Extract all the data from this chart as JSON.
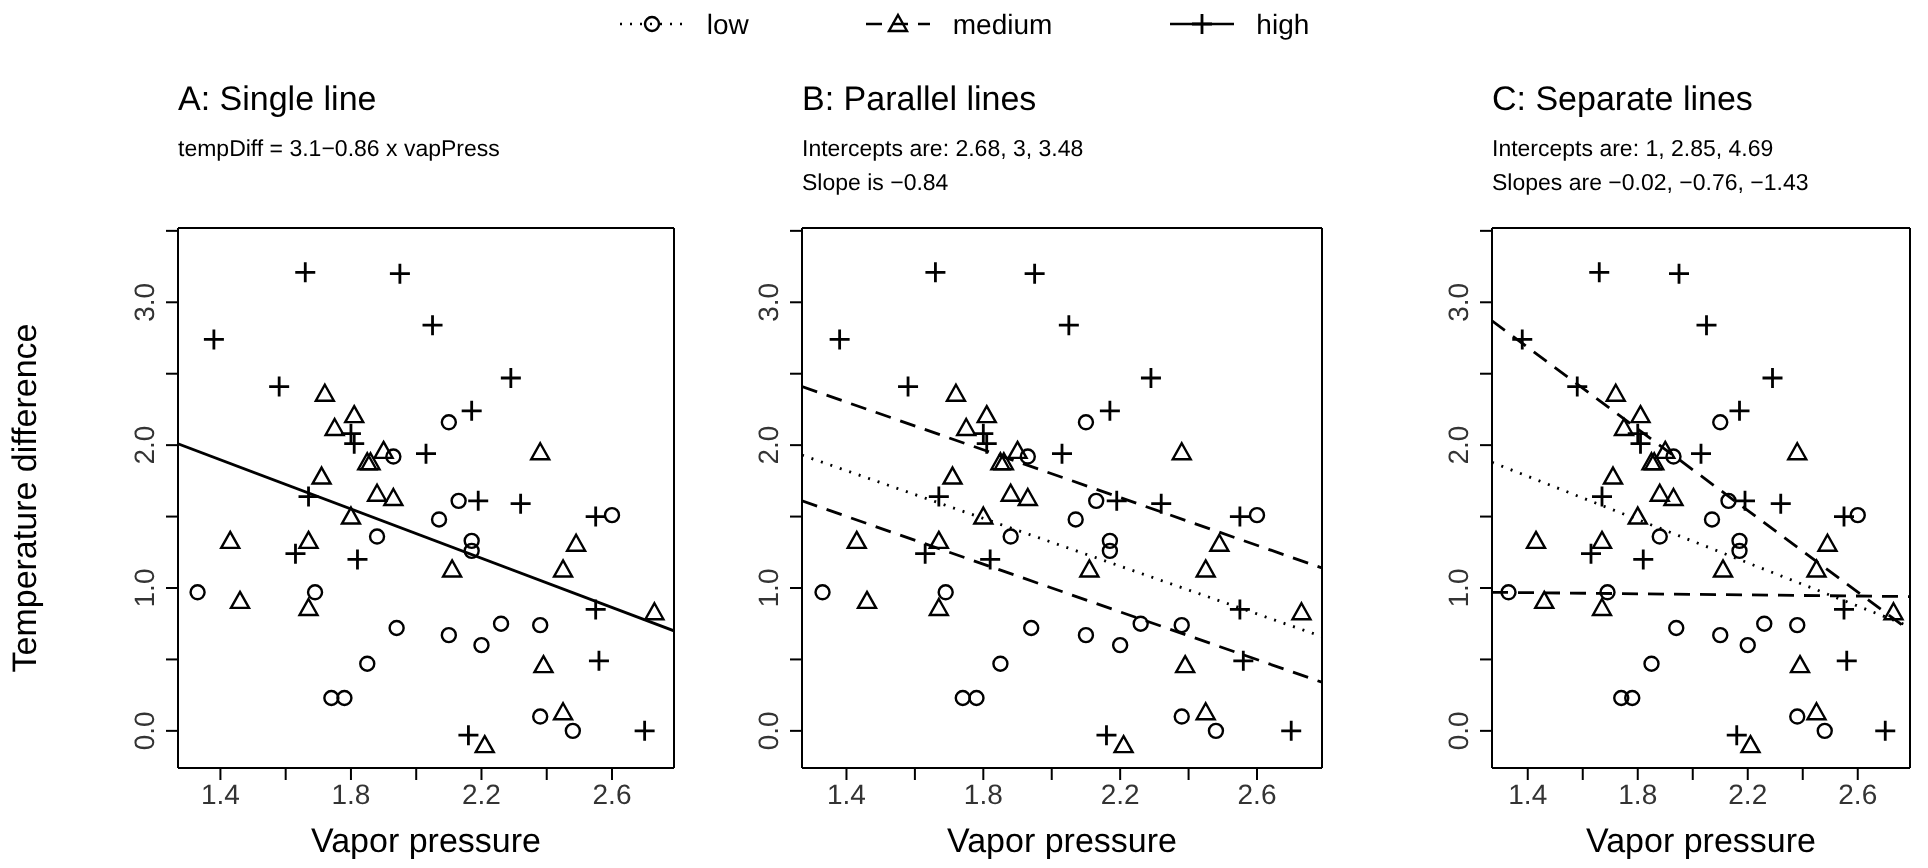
{
  "chart_data": [
    {
      "type": "scatter",
      "title": "A: Single line",
      "subtitle": "tempDiff = 3.1−0.86 x vapPress",
      "xlabel": "Vapor pressure",
      "ylabel": "Temperature difference",
      "legend": "top",
      "xlim": [
        1.27,
        2.79
      ],
      "ylim": [
        -0.26,
        3.52
      ],
      "xticks": [
        1.4,
        {
          "value": 1.6,
          "label": null
        },
        1.8,
        {
          "value": 2.0,
          "label": null
        },
        2.2,
        {
          "value": 2.4,
          "label": null
        },
        2.6
      ],
      "yticks": [
        {
          "value": 0,
          "label": "0.0"
        },
        {
          "value": 0.5,
          "label": null
        },
        {
          "value": 1,
          "label": "1.0"
        },
        {
          "value": 1.5,
          "label": null
        },
        {
          "value": 2,
          "label": "2.0"
        },
        {
          "value": 2.5,
          "label": null
        },
        {
          "value": 3,
          "label": "3.0"
        },
        {
          "value": 3.5,
          "label": null
        }
      ],
      "series": [
        {
          "name": "low",
          "type": "scatter",
          "marker": "circle",
          "line_style": "dotted",
          "color": "#000000",
          "x": [
            1.33,
            1.69,
            1.74,
            1.78,
            1.85,
            1.88,
            1.93,
            1.94,
            2.07,
            2.1,
            2.1,
            2.13,
            2.17,
            2.17,
            2.2,
            2.26,
            2.38,
            2.38,
            2.48,
            2.6
          ],
          "values": [
            0.97,
            0.97,
            0.23,
            0.23,
            0.47,
            1.36,
            1.92,
            0.72,
            1.48,
            2.16,
            0.67,
            1.61,
            1.33,
            1.26,
            0.6,
            0.75,
            0.74,
            0.1,
            0.0,
            1.51
          ]
        },
        {
          "name": "medium",
          "type": "scatter",
          "marker": "triangle",
          "line_style": "dashed",
          "color": "#000000",
          "x": [
            1.43,
            1.46,
            1.67,
            1.67,
            1.71,
            1.72,
            1.75,
            1.81,
            1.8,
            1.85,
            1.86,
            1.9,
            1.88,
            1.93,
            2.11,
            2.21,
            2.38,
            2.39,
            2.45,
            2.45,
            2.49,
            2.73
          ],
          "values": [
            1.33,
            0.91,
            1.33,
            0.86,
            1.78,
            2.36,
            2.12,
            2.21,
            1.5,
            1.88,
            1.88,
            1.96,
            1.66,
            1.63,
            1.13,
            -0.1,
            1.95,
            0.46,
            1.13,
            0.13,
            1.31,
            0.83
          ]
        },
        {
          "name": "high",
          "type": "scatter",
          "marker": "cross",
          "line_style": "solid",
          "color": "#000000",
          "x": [
            1.38,
            1.58,
            1.66,
            1.67,
            1.63,
            1.81,
            1.8,
            1.82,
            1.95,
            2.05,
            2.03,
            2.17,
            2.19,
            2.16,
            2.29,
            2.32,
            2.55,
            2.55,
            2.56,
            2.7
          ],
          "values": [
            2.74,
            2.41,
            3.21,
            1.64,
            1.24,
            2.01,
            2.08,
            1.2,
            3.2,
            2.84,
            1.94,
            2.24,
            1.61,
            -0.03,
            2.47,
            1.59,
            1.5,
            0.85,
            0.49,
            0.0
          ]
        },
        {
          "type": "line",
          "line_style": "solid",
          "color": "#000000",
          "x": [
            1.27,
            2.79
          ],
          "values": [
            2.01,
            0.7
          ]
        }
      ]
    },
    {
      "type": "scatter",
      "title": "B: Parallel lines",
      "subtitle": "Intercepts are: 2.68, 3, 3.48\nSlope is −0.84",
      "xlabel": "Vapor pressure",
      "xlim": [
        1.27,
        2.79
      ],
      "ylim": [
        -0.26,
        3.52
      ],
      "xticks": [
        1.4,
        {
          "value": 1.6,
          "label": null
        },
        1.8,
        {
          "value": 2.0,
          "label": null
        },
        2.2,
        {
          "value": 2.4,
          "label": null
        },
        2.6
      ],
      "yticks": [
        {
          "value": 0,
          "label": "0.0"
        },
        {
          "value": 0.5,
          "label": null
        },
        {
          "value": 1,
          "label": "1.0"
        },
        {
          "value": 1.5,
          "label": null
        },
        {
          "value": 2,
          "label": "2.0"
        },
        {
          "value": 2.5,
          "label": null
        },
        {
          "value": 3,
          "label": "3.0"
        },
        {
          "value": 3.5,
          "label": null
        }
      ],
      "series": [
        {
          "type": "scatter",
          "marker": "circle",
          "color": "#000000",
          "x": [
            1.33,
            1.69,
            1.74,
            1.78,
            1.85,
            1.88,
            1.93,
            1.94,
            2.07,
            2.1,
            2.1,
            2.13,
            2.17,
            2.17,
            2.2,
            2.26,
            2.38,
            2.38,
            2.48,
            2.6
          ],
          "values": [
            0.97,
            0.97,
            0.23,
            0.23,
            0.47,
            1.36,
            1.92,
            0.72,
            1.48,
            2.16,
            0.67,
            1.61,
            1.33,
            1.26,
            0.6,
            0.75,
            0.74,
            0.1,
            0.0,
            1.51
          ]
        },
        {
          "type": "scatter",
          "marker": "triangle",
          "color": "#000000",
          "x": [
            1.43,
            1.46,
            1.67,
            1.67,
            1.71,
            1.72,
            1.75,
            1.81,
            1.8,
            1.85,
            1.86,
            1.9,
            1.88,
            1.93,
            2.11,
            2.21,
            2.38,
            2.39,
            2.45,
            2.45,
            2.49,
            2.73
          ],
          "values": [
            1.33,
            0.91,
            1.33,
            0.86,
            1.78,
            2.36,
            2.12,
            2.21,
            1.5,
            1.88,
            1.88,
            1.96,
            1.66,
            1.63,
            1.13,
            -0.1,
            1.95,
            0.46,
            1.13,
            0.13,
            1.31,
            0.83
          ]
        },
        {
          "type": "scatter",
          "marker": "cross",
          "color": "#000000",
          "x": [
            1.38,
            1.58,
            1.66,
            1.67,
            1.63,
            1.81,
            1.8,
            1.82,
            1.95,
            2.05,
            2.03,
            2.17,
            2.19,
            2.16,
            2.29,
            2.32,
            2.55,
            2.55,
            2.56,
            2.7
          ],
          "values": [
            2.74,
            2.41,
            3.21,
            1.64,
            1.24,
            2.01,
            2.08,
            1.2,
            3.2,
            2.84,
            1.94,
            2.24,
            1.61,
            -0.03,
            2.47,
            1.59,
            1.5,
            0.85,
            0.49,
            0.0
          ]
        },
        {
          "type": "line",
          "line_style": "dashed",
          "color": "#000000",
          "x": [
            1.27,
            2.79
          ],
          "values": [
            1.61,
            0.34
          ]
        },
        {
          "type": "line",
          "line_style": "dotted",
          "color": "#000000",
          "x": [
            1.27,
            2.79
          ],
          "values": [
            1.93,
            0.66
          ]
        },
        {
          "type": "line",
          "line_style": "dashed",
          "color": "#000000",
          "x": [
            1.27,
            2.79
          ],
          "values": [
            2.41,
            1.14
          ]
        }
      ]
    },
    {
      "type": "scatter",
      "title": "C: Separate lines",
      "subtitle": "Intercepts are: 1, 2.85, 4.69\nSlopes are −0.02, −0.76, −1.43",
      "xlabel": "Vapor pressure",
      "xlim": [
        1.27,
        2.79
      ],
      "ylim": [
        -0.26,
        3.52
      ],
      "xticks": [
        1.4,
        {
          "value": 1.6,
          "label": null
        },
        1.8,
        {
          "value": 2.0,
          "label": null
        },
        2.2,
        {
          "value": 2.4,
          "label": null
        },
        2.6
      ],
      "yticks": [
        {
          "value": 0,
          "label": "0.0"
        },
        {
          "value": 0.5,
          "label": null
        },
        {
          "value": 1,
          "label": "1.0"
        },
        {
          "value": 1.5,
          "label": null
        },
        {
          "value": 2,
          "label": "2.0"
        },
        {
          "value": 2.5,
          "label": null
        },
        {
          "value": 3,
          "label": "3.0"
        },
        {
          "value": 3.5,
          "label": null
        }
      ],
      "series": [
        {
          "type": "scatter",
          "marker": "circle",
          "color": "#000000",
          "x": [
            1.33,
            1.69,
            1.74,
            1.78,
            1.85,
            1.88,
            1.93,
            1.94,
            2.07,
            2.1,
            2.1,
            2.13,
            2.17,
            2.17,
            2.2,
            2.26,
            2.38,
            2.38,
            2.48,
            2.6
          ],
          "values": [
            0.97,
            0.97,
            0.23,
            0.23,
            0.47,
            1.36,
            1.92,
            0.72,
            1.48,
            2.16,
            0.67,
            1.61,
            1.33,
            1.26,
            0.6,
            0.75,
            0.74,
            0.1,
            0.0,
            1.51
          ]
        },
        {
          "type": "scatter",
          "marker": "triangle",
          "color": "#000000",
          "x": [
            1.43,
            1.46,
            1.67,
            1.67,
            1.71,
            1.72,
            1.75,
            1.81,
            1.8,
            1.85,
            1.86,
            1.9,
            1.88,
            1.93,
            2.11,
            2.21,
            2.38,
            2.39,
            2.45,
            2.45,
            2.49,
            2.73
          ],
          "values": [
            1.33,
            0.91,
            1.33,
            0.86,
            1.78,
            2.36,
            2.12,
            2.21,
            1.5,
            1.88,
            1.88,
            1.96,
            1.66,
            1.63,
            1.13,
            -0.1,
            1.95,
            0.46,
            1.13,
            0.13,
            1.31,
            0.83
          ]
        },
        {
          "type": "scatter",
          "marker": "cross",
          "color": "#000000",
          "x": [
            1.38,
            1.58,
            1.66,
            1.67,
            1.63,
            1.81,
            1.8,
            1.82,
            1.95,
            2.05,
            2.03,
            2.17,
            2.19,
            2.16,
            2.29,
            2.32,
            2.55,
            2.55,
            2.56,
            2.7
          ],
          "values": [
            2.74,
            2.41,
            3.21,
            1.64,
            1.24,
            2.01,
            2.08,
            1.2,
            3.2,
            2.84,
            1.94,
            2.24,
            1.61,
            -0.03,
            2.47,
            1.59,
            1.5,
            0.85,
            0.49,
            0.0
          ]
        },
        {
          "type": "line",
          "line_style": "dashed",
          "color": "#000000",
          "x": [
            1.27,
            2.79
          ],
          "values": [
            0.97,
            0.94
          ]
        },
        {
          "type": "line",
          "line_style": "dotted",
          "color": "#000000",
          "x": [
            1.27,
            2.79
          ],
          "values": [
            1.88,
            0.73
          ]
        },
        {
          "type": "line",
          "line_style": "dashed",
          "color": "#000000",
          "x": [
            1.27,
            2.79
          ],
          "values": [
            2.87,
            0.7
          ]
        }
      ]
    }
  ]
}
